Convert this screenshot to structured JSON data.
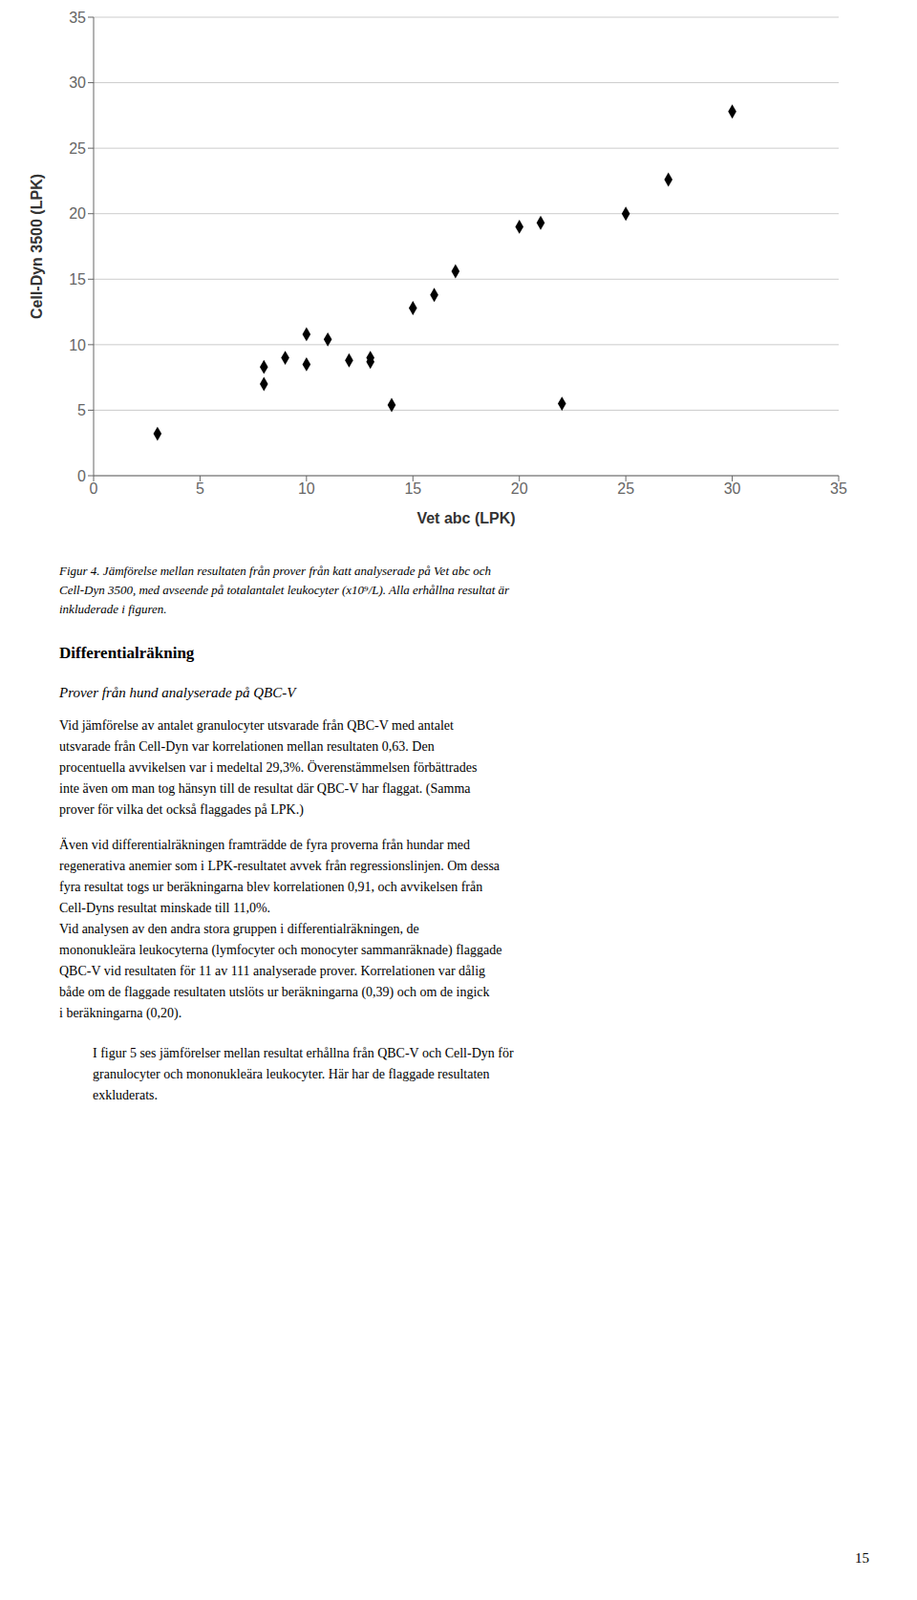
{
  "chart_data": {
    "type": "scatter",
    "x": [
      3,
      8,
      8,
      9,
      10,
      10,
      11,
      12,
      13,
      13,
      14,
      15,
      16,
      17,
      20,
      21,
      22,
      25,
      27,
      30
    ],
    "values": [
      3.2,
      7.0,
      8.3,
      9.0,
      8.5,
      10.8,
      10.4,
      8.8,
      8.7,
      9.0,
      5.4,
      12.8,
      13.8,
      15.6,
      19.0,
      19.3,
      5.5,
      20.0,
      22.6,
      27.8
    ],
    "xlabel": "Vet abc (LPK)",
    "ylabel": "Cell-Dyn 3500 (LPK)",
    "xlim": [
      0,
      35
    ],
    "ylim": [
      0,
      35
    ],
    "xticks": [
      0,
      5,
      10,
      15,
      20,
      25,
      30,
      35
    ],
    "yticks": [
      0,
      5,
      10,
      15,
      20,
      25,
      30,
      35
    ],
    "color": "#000000",
    "marker": "diamond",
    "grid": "y",
    "annotations": [
      [
        "Figur 4. Jämförelse mellan resultaten från prover från katt analyserade på Vet abc och",
        "Cell-Dyn 3500, med avseende på totalantalet leukocyter (x10⁹/L). Alla erhållna resultat är",
        "inkluderade i figuren."
      ],
      [
        "Differentialräkning"
      ],
      [
        "Prover från hund analyserade på QBC-V"
      ],
      [
        "Vid jämförelse av antalet granulocyter utsvarade från QBC-V med antalet",
        "utsvarade från Cell-Dyn var korrelationen mellan resultaten 0,63. Den",
        "procentuella avvikelsen var i medeltal 29,3%. Överenstämmelsen förbättrades",
        "inte även om man tog hänsyn till de resultat där QBC-V har flaggat. (Samma",
        "prover för vilka det också flaggades på LPK.)"
      ],
      [
        "Även vid differentialräkningen framträdde de fyra proverna från hundar med",
        "regenerativa anemier som i LPK-resultatet avvek från regressionslinjen. Om dessa",
        "fyra resultat togs ur beräkningarna blev korrelationen 0,91, och avvikelsen från",
        "Cell-Dyns resultat minskade till 11,0%."
      ],
      [
        "Vid analysen av den andra stora gruppen i differentialräkningen, de",
        "mononukleära leukocyterna (lymfocyter och monocyter sammanräknade) flaggade",
        "QBC-V vid resultaten för 11 av 111 analyserade prover. Korrelationen var dålig",
        "både om de flaggade resultaten utslöts ur beräkningarna (0,39) och om de ingick",
        "i beräkningarna (0,20)."
      ],
      [
        "I figur 5 ses jämförelser mellan resultat erhållna från QBC-V och Cell-Dyn för",
        "granulocyter och mononukleära leukocyter. Här har de flaggade resultaten",
        "exkluderats."
      ],
      [
        "15"
      ]
    ]
  }
}
